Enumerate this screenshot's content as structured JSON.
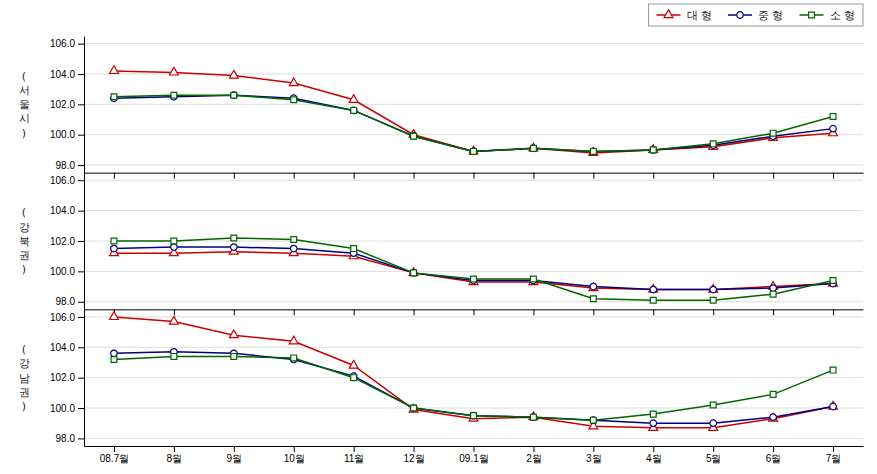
{
  "chart_data": [
    {
      "type": "line",
      "y_label": "(서울시)",
      "categories": [
        null,
        null,
        null,
        null,
        null,
        null,
        null,
        null,
        null,
        null,
        null,
        null,
        null
      ],
      "series": [
        {
          "name": "대 형",
          "color": "#cc0000",
          "marker": "triangle",
          "values": [
            104.2,
            104.1,
            103.9,
            103.4,
            102.3,
            100.0,
            98.9,
            99.1,
            98.8,
            99.0,
            99.2,
            99.8,
            100.1
          ]
        },
        {
          "name": "중 형",
          "color": "#000080",
          "marker": "circle",
          "values": [
            102.4,
            102.5,
            102.6,
            102.4,
            101.6,
            99.9,
            98.9,
            99.1,
            98.9,
            99.0,
            99.3,
            99.9,
            100.4
          ]
        },
        {
          "name": "소 형",
          "color": "#006600",
          "marker": "square",
          "values": [
            102.5,
            102.6,
            102.6,
            102.3,
            101.6,
            99.9,
            98.9,
            99.1,
            98.9,
            99.0,
            99.4,
            100.1,
            101.2
          ]
        }
      ],
      "ylim": [
        97.5,
        106.5
      ],
      "yticks": [
        {
          "value": 98,
          "label": "98.0"
        },
        {
          "value": 100,
          "label": "100.0"
        },
        {
          "value": 102,
          "label": "102.0"
        },
        {
          "value": 104,
          "label": "104.0"
        },
        {
          "value": 106,
          "label": "106.0"
        }
      ],
      "grid": true,
      "legend": "upper right"
    },
    {
      "type": "line",
      "y_label": "(강북권)",
      "categories": [
        null,
        null,
        null,
        null,
        null,
        null,
        null,
        null,
        null,
        null,
        null,
        null,
        null
      ],
      "series": [
        {
          "color": "#cc0000",
          "marker": "triangle",
          "values": [
            101.2,
            101.2,
            101.3,
            101.2,
            101.0,
            99.9,
            99.3,
            99.3,
            98.9,
            98.8,
            98.8,
            99.0,
            99.2
          ]
        },
        {
          "color": "#000080",
          "marker": "circle",
          "values": [
            101.5,
            101.6,
            101.6,
            101.5,
            101.2,
            99.9,
            99.4,
            99.4,
            99.0,
            98.8,
            98.8,
            98.9,
            99.2
          ]
        },
        {
          "color": "#006600",
          "marker": "square",
          "values": [
            102.0,
            102.0,
            102.2,
            102.1,
            101.5,
            99.9,
            99.5,
            99.5,
            98.2,
            98.1,
            98.1,
            98.5,
            99.4
          ]
        }
      ],
      "ylim": [
        97.5,
        106.5
      ],
      "yticks": [
        {
          "value": 98,
          "label": "98.0"
        },
        {
          "value": 100,
          "label": "100.0"
        },
        {
          "value": 102,
          "label": "102.0"
        },
        {
          "value": 104,
          "label": "104.0"
        },
        {
          "value": 106,
          "label": "106.0"
        }
      ],
      "grid": true
    },
    {
      "type": "line",
      "y_label": "(강남권)",
      "categories": [
        "08.7월",
        "8월",
        "9월",
        "10월",
        "11월",
        "12월",
        "09.1월",
        "2월",
        "3월",
        "4월",
        "5월",
        "6월",
        "7월"
      ],
      "series": [
        {
          "color": "#cc0000",
          "marker": "triangle",
          "values": [
            106.0,
            105.7,
            104.8,
            104.4,
            102.8,
            99.9,
            99.3,
            99.4,
            98.8,
            98.7,
            98.7,
            99.3,
            100.1
          ]
        },
        {
          "color": "#000080",
          "marker": "circle",
          "values": [
            103.6,
            103.7,
            103.6,
            103.2,
            102.1,
            100.0,
            99.5,
            99.4,
            99.2,
            99.0,
            99.0,
            99.4,
            100.1
          ]
        },
        {
          "color": "#006600",
          "marker": "square",
          "values": [
            103.2,
            103.4,
            103.4,
            103.3,
            102.0,
            100.0,
            99.5,
            99.4,
            99.2,
            99.6,
            100.2,
            100.9,
            102.5
          ]
        }
      ],
      "ylim": [
        97.5,
        106.5
      ],
      "yticks": [
        {
          "value": 98,
          "label": "98.0"
        },
        {
          "value": 100,
          "label": "100.0"
        },
        {
          "value": 102,
          "label": "102.0"
        },
        {
          "value": 104,
          "label": "104.0"
        },
        {
          "value": 106,
          "label": "106.0"
        }
      ],
      "grid": true
    }
  ]
}
